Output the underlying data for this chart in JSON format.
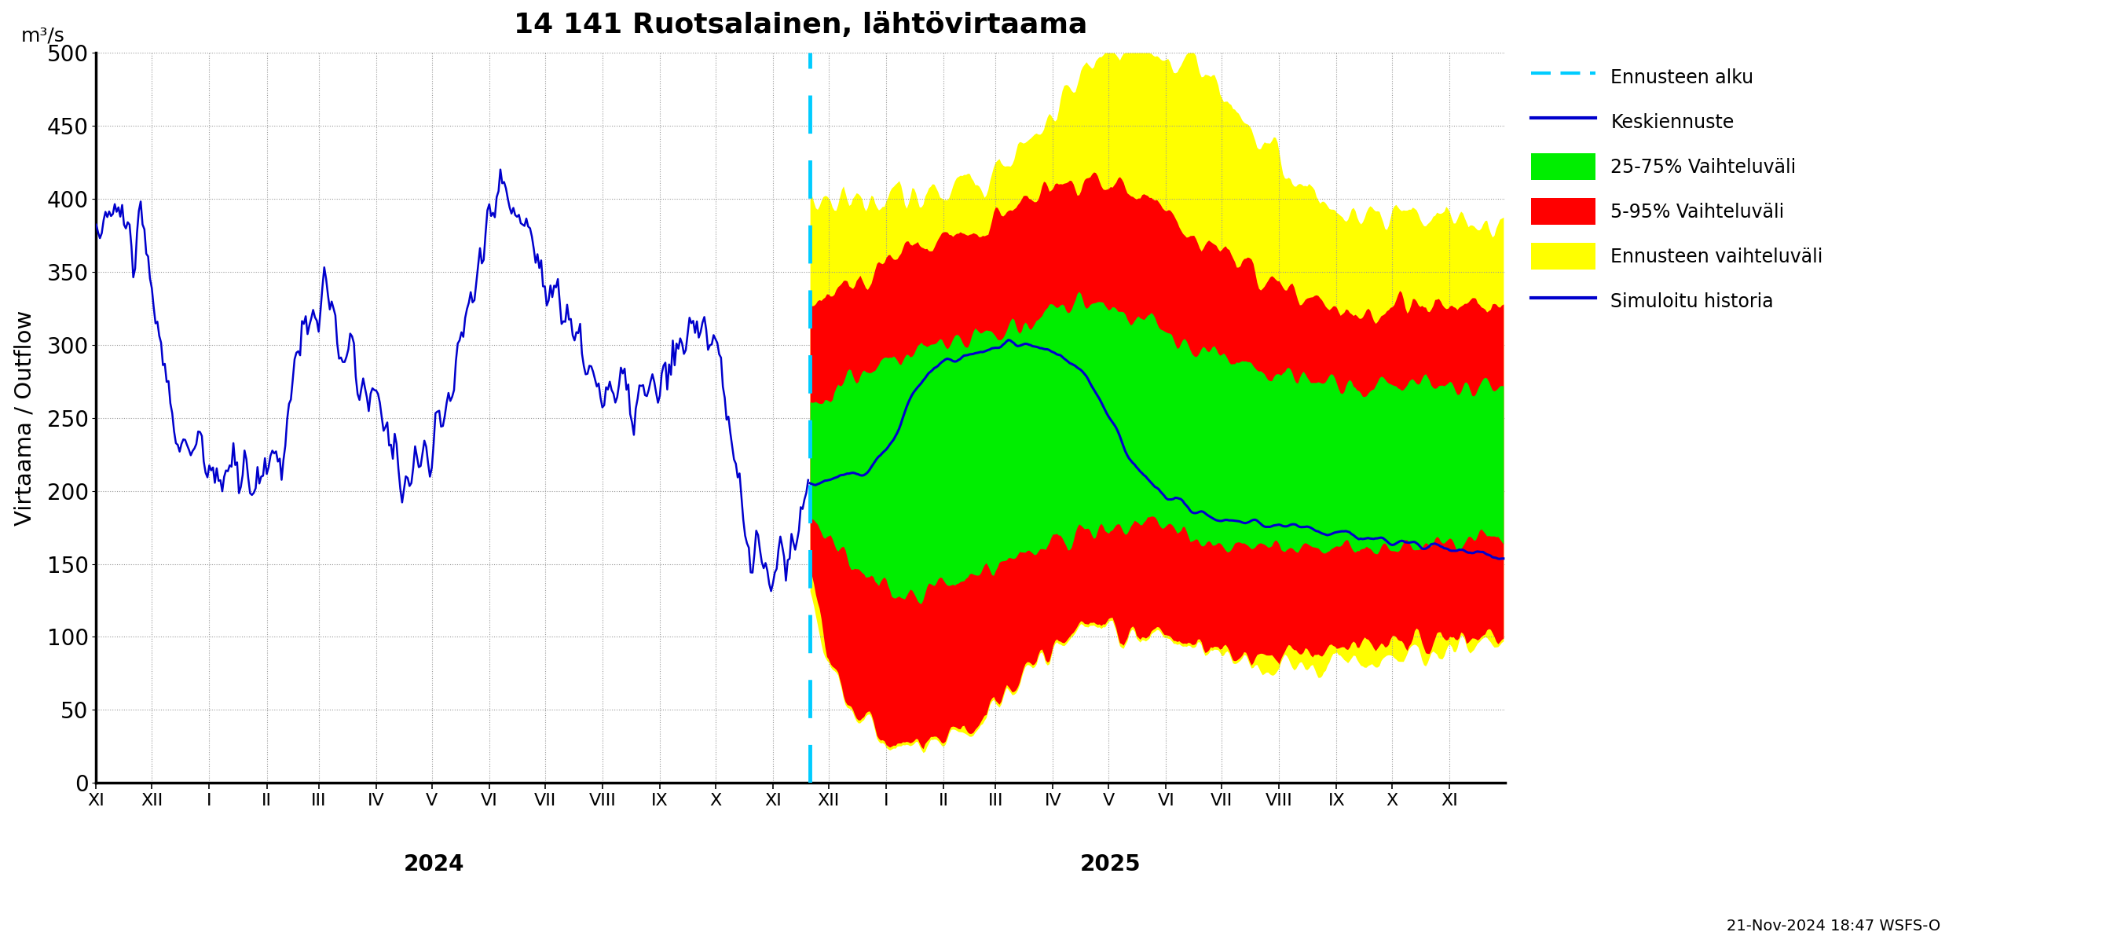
{
  "title": "14 141 Ruotsalainen, lähtövirtaama",
  "ylabel": "Virtaama / Outflow",
  "yunits": "m³/s",
  "footer": "21-Nov-2024 18:47 WSFS-O",
  "ylim": [
    0,
    500
  ],
  "yticks": [
    0,
    50,
    100,
    150,
    200,
    250,
    300,
    350,
    400,
    450,
    500
  ],
  "hist_color": "#0000cc",
  "median_color": "#0000cc",
  "green_color": "#00ee00",
  "red_color": "#ff0000",
  "yellow_color": "#ffff00",
  "cyan_color": "#00ccff",
  "bg_color": "#ffffff",
  "grid_color": "#999999",
  "legend_labels": [
    "Ennusteen alku",
    "Keskiennuste",
    "25-75% Vaihteluväli",
    "5-95% Vaihteluväli",
    "Ennusteen vaihteluväli",
    "Simuloitu historia"
  ],
  "n_hist": 385,
  "n_fore": 375
}
